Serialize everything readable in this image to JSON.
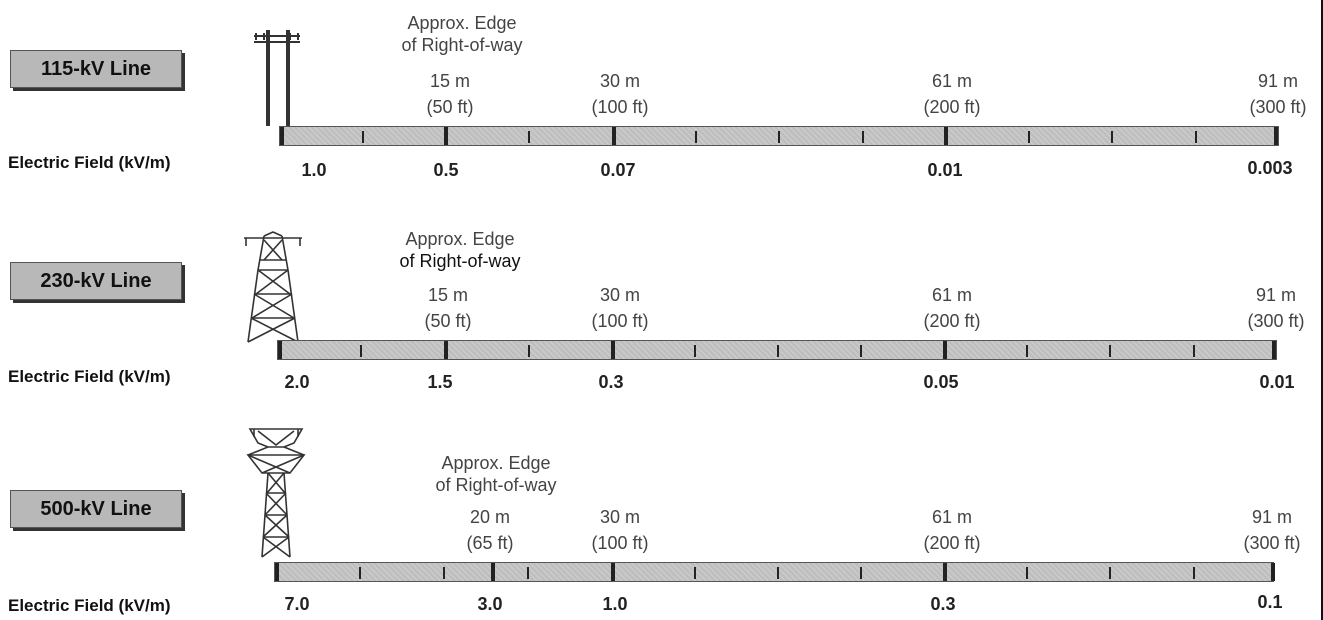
{
  "field_label": "Electric Field (kV/m)",
  "edge_lines": [
    "Approx. Edge",
    "of Right-of-way"
  ],
  "panels": [
    {
      "line_label": "115-kV Line",
      "distances": [
        {
          "m": "15 m",
          "ft": "(50 ft)"
        },
        {
          "m": "30 m",
          "ft": "(100 ft)"
        },
        {
          "m": "61 m",
          "ft": "(200 ft)"
        },
        {
          "m": "91 m",
          "ft": "(300 ft)"
        }
      ],
      "values": [
        "1.0",
        "0.5",
        "0.07",
        "0.01",
        "0.003"
      ]
    },
    {
      "line_label": "230-kV Line",
      "distances": [
        {
          "m": "15 m",
          "ft": "(50 ft)"
        },
        {
          "m": "30 m",
          "ft": "(100 ft)"
        },
        {
          "m": "61 m",
          "ft": "(200 ft)"
        },
        {
          "m": "91 m",
          "ft": "(300 ft)"
        }
      ],
      "values": [
        "2.0",
        "1.5",
        "0.3",
        "0.05",
        "0.01"
      ]
    },
    {
      "line_label": "500-kV Line",
      "distances": [
        {
          "m": "20 m",
          "ft": "(65 ft)"
        },
        {
          "m": "30 m",
          "ft": "(100 ft)"
        },
        {
          "m": "61 m",
          "ft": "(200 ft)"
        },
        {
          "m": "91 m",
          "ft": "(300 ft)"
        }
      ],
      "values": [
        "7.0",
        "3.0",
        "1.0",
        "0.3",
        "0.1"
      ]
    }
  ],
  "icons": [
    "wood-pole-icon",
    "lattice-tower-icon",
    "large-lattice-tower-icon"
  ]
}
